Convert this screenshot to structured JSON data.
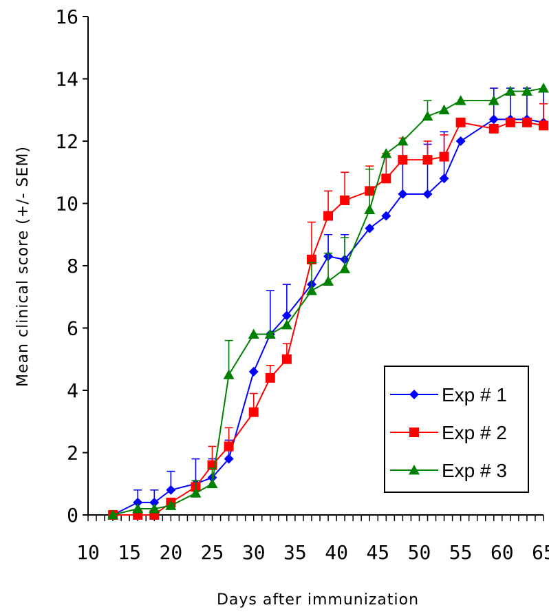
{
  "chart_data": {
    "type": "line",
    "title": "",
    "xlabel": "Days after immunization",
    "ylabel": "Mean clinical score (+/- SEM)",
    "xlim": [
      10,
      65
    ],
    "ylim": [
      0,
      16
    ],
    "x_ticks": [
      10,
      15,
      20,
      25,
      30,
      35,
      40,
      45,
      50,
      55,
      60,
      65
    ],
    "y_ticks": [
      0,
      2,
      4,
      6,
      8,
      10,
      12,
      14,
      16
    ],
    "grid": false,
    "legend_position": "bottom-right",
    "series": [
      {
        "name": "Exp # 1",
        "color": "#0000ff",
        "marker": "diamond",
        "points": [
          {
            "x": 13,
            "y": 0,
            "err": 0
          },
          {
            "x": 16,
            "y": 0.4,
            "err": 0.4
          },
          {
            "x": 18,
            "y": 0.4,
            "err": 0.4
          },
          {
            "x": 20,
            "y": 0.8,
            "err": 0.6
          },
          {
            "x": 23,
            "y": 1.0,
            "err": 0.8
          },
          {
            "x": 25,
            "y": 1.2,
            "err": 0.6
          },
          {
            "x": 27,
            "y": 1.8,
            "err": 0.6
          },
          {
            "x": 30,
            "y": 4.6,
            "err": 0
          },
          {
            "x": 32,
            "y": 5.8,
            "err": 1.4
          },
          {
            "x": 34,
            "y": 6.4,
            "err": 1.0
          },
          {
            "x": 37,
            "y": 7.4,
            "err": 0
          },
          {
            "x": 39,
            "y": 8.3,
            "err": 0.7
          },
          {
            "x": 41,
            "y": 8.2,
            "err": 0.8
          },
          {
            "x": 44,
            "y": 9.2,
            "err": 0
          },
          {
            "x": 46,
            "y": 9.6,
            "err": 0
          },
          {
            "x": 48,
            "y": 10.3,
            "err": 1.6
          },
          {
            "x": 51,
            "y": 10.3,
            "err": 1.6
          },
          {
            "x": 53,
            "y": 10.8,
            "err": 1.5
          },
          {
            "x": 55,
            "y": 12.0,
            "err": 0
          },
          {
            "x": 59,
            "y": 12.7,
            "err": 1.0
          },
          {
            "x": 61,
            "y": 12.7,
            "err": 1.0
          },
          {
            "x": 63,
            "y": 12.7,
            "err": 1.0
          },
          {
            "x": 65,
            "y": 12.6,
            "err": 1.0
          }
        ]
      },
      {
        "name": "Exp # 2",
        "color": "#ff0000",
        "marker": "square",
        "points": [
          {
            "x": 13,
            "y": 0,
            "err": 0
          },
          {
            "x": 16,
            "y": 0,
            "err": 0
          },
          {
            "x": 18,
            "y": 0,
            "err": 0
          },
          {
            "x": 20,
            "y": 0.4,
            "err": 0
          },
          {
            "x": 23,
            "y": 0.9,
            "err": 0
          },
          {
            "x": 25,
            "y": 1.6,
            "err": 0.6
          },
          {
            "x": 27,
            "y": 2.2,
            "err": 0.6
          },
          {
            "x": 30,
            "y": 3.3,
            "err": 0.6
          },
          {
            "x": 32,
            "y": 4.4,
            "err": 0.4
          },
          {
            "x": 34,
            "y": 5.0,
            "err": 0.5
          },
          {
            "x": 37,
            "y": 8.2,
            "err": 1.2
          },
          {
            "x": 39,
            "y": 9.6,
            "err": 0.8
          },
          {
            "x": 41,
            "y": 10.1,
            "err": 0.9
          },
          {
            "x": 44,
            "y": 10.4,
            "err": 0.8
          },
          {
            "x": 46,
            "y": 10.8,
            "err": 0.8
          },
          {
            "x": 48,
            "y": 11.4,
            "err": 0.7
          },
          {
            "x": 51,
            "y": 11.4,
            "err": 0.6
          },
          {
            "x": 53,
            "y": 11.5,
            "err": 0.7
          },
          {
            "x": 55,
            "y": 12.6,
            "err": 0
          },
          {
            "x": 59,
            "y": 12.4,
            "err": 0
          },
          {
            "x": 61,
            "y": 12.6,
            "err": 0
          },
          {
            "x": 63,
            "y": 12.6,
            "err": 0
          },
          {
            "x": 65,
            "y": 12.5,
            "err": 0.7
          }
        ]
      },
      {
        "name": "Exp # 3",
        "color": "#008000",
        "marker": "triangle",
        "points": [
          {
            "x": 13,
            "y": 0,
            "err": 0
          },
          {
            "x": 16,
            "y": 0.2,
            "err": 0
          },
          {
            "x": 18,
            "y": 0.2,
            "err": 0
          },
          {
            "x": 20,
            "y": 0.3,
            "err": 0
          },
          {
            "x": 23,
            "y": 0.7,
            "err": 0.4
          },
          {
            "x": 25,
            "y": 1.0,
            "err": 0.5
          },
          {
            "x": 27,
            "y": 4.5,
            "err": 1.1
          },
          {
            "x": 30,
            "y": 5.8,
            "err": 0
          },
          {
            "x": 32,
            "y": 5.8,
            "err": 0
          },
          {
            "x": 34,
            "y": 6.1,
            "err": 0
          },
          {
            "x": 37,
            "y": 7.2,
            "err": 0.9
          },
          {
            "x": 39,
            "y": 7.5,
            "err": 0.9
          },
          {
            "x": 41,
            "y": 7.9,
            "err": 1.0
          },
          {
            "x": 44,
            "y": 9.8,
            "err": 1.3
          },
          {
            "x": 46,
            "y": 11.6,
            "err": 0
          },
          {
            "x": 48,
            "y": 12.0,
            "err": 0
          },
          {
            "x": 51,
            "y": 12.8,
            "err": 0.5
          },
          {
            "x": 53,
            "y": 13.0,
            "err": 0
          },
          {
            "x": 55,
            "y": 13.3,
            "err": 0
          },
          {
            "x": 59,
            "y": 13.3,
            "err": 0
          },
          {
            "x": 61,
            "y": 13.6,
            "err": 0
          },
          {
            "x": 63,
            "y": 13.6,
            "err": 0
          },
          {
            "x": 65,
            "y": 13.7,
            "err": 0
          }
        ]
      }
    ]
  }
}
